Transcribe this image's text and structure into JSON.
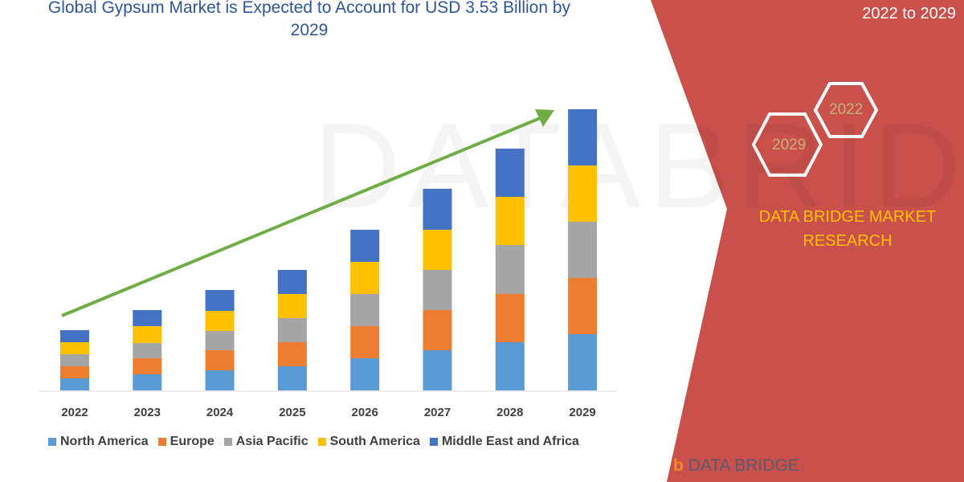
{
  "title": "Global Gypsum Market is Expected to Account for USD 3.53 Billion by 2029",
  "side_text": "2022 to 2029",
  "hexagons": [
    "2022",
    "2029"
  ],
  "brand": "DATA BRIDGE MARKET RESEARCH",
  "logo_text": "DATA BRIDGE",
  "colors": {
    "panel": "#c9504b",
    "arrow": "#70ad47"
  },
  "chart_data": {
    "type": "bar",
    "stacked": true,
    "categories": [
      "2022",
      "2023",
      "2024",
      "2025",
      "2026",
      "2027",
      "2028",
      "2029"
    ],
    "series": [
      {
        "name": "North America",
        "color": "#5b9bd5",
        "values": [
          15,
          20,
          25,
          30,
          40,
          50,
          60,
          70
        ]
      },
      {
        "name": "Europe",
        "color": "#ed7d31",
        "values": [
          15,
          20,
          25,
          30,
          40,
          50,
          60,
          70
        ]
      },
      {
        "name": "Asia Pacific",
        "color": "#a5a5a5",
        "values": [
          15,
          19,
          24,
          30,
          40,
          50,
          61,
          70
        ]
      },
      {
        "name": "South America",
        "color": "#ffc000",
        "values": [
          15,
          21,
          25,
          30,
          40,
          50,
          60,
          70
        ]
      },
      {
        "name": "Middle East and Africa",
        "color": "#4472c4",
        "values": [
          15,
          20,
          26,
          30,
          40,
          51,
          60,
          70
        ]
      }
    ],
    "legend": "bottom",
    "grid": false,
    "trend_arrow": true
  }
}
